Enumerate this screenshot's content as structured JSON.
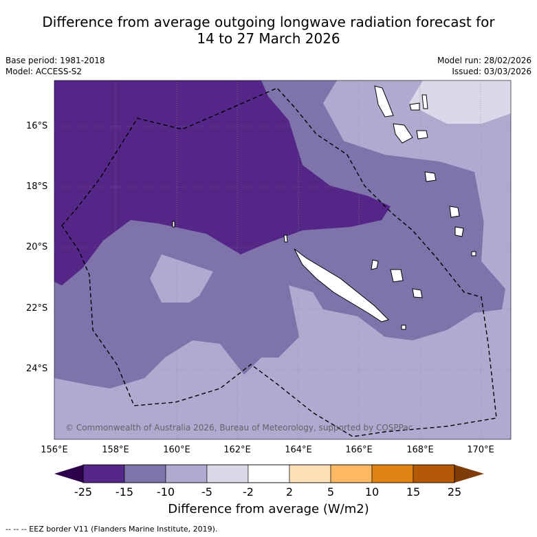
{
  "header": {
    "title_line1": "Difference from average outgoing longwave radiation forecast for",
    "title_line2": "14 to 27 March 2026",
    "base_period": "Base period: 1981-2018",
    "model": "Model: ACCESS-S2",
    "model_run": "Model run: 28/02/2026",
    "issued": "Issued: 03/03/2026"
  },
  "map": {
    "lat_labels": [
      "16°S",
      "18°S",
      "20°S",
      "22°S",
      "24°S"
    ],
    "lon_labels": [
      "156°E",
      "158°E",
      "160°E",
      "162°E",
      "164°E",
      "166°E",
      "168°E",
      "170°E"
    ],
    "copyright": "© Commonwealth of Australia 2026, Bureau of Meteorology, supported by COSPPac",
    "colors": {
      "c_m25_m15": "#542687",
      "c_m15_m10": "#7e73ab",
      "c_m10_m5": "#b0aad1",
      "c_m5_m2": "#d9d9ea",
      "land": "#ffffff"
    }
  },
  "colorbar": {
    "title": "Difference from average (W/m2)",
    "tick_labels": [
      "-25",
      "-15",
      "-10",
      "-5",
      "-2",
      "2",
      "5",
      "10",
      "15",
      "25"
    ],
    "colors": [
      "#542687",
      "#7e73ab",
      "#b0aad1",
      "#d9d9ea",
      "#ffffff",
      "#fde0b6",
      "#fdb863",
      "#e08214",
      "#b35806"
    ],
    "under_color": "#2d004b",
    "over_color": "#7f3b08"
  },
  "footnote": "--  --  -- EEZ border V11 (Flanders Marine Institute, 2019)."
}
